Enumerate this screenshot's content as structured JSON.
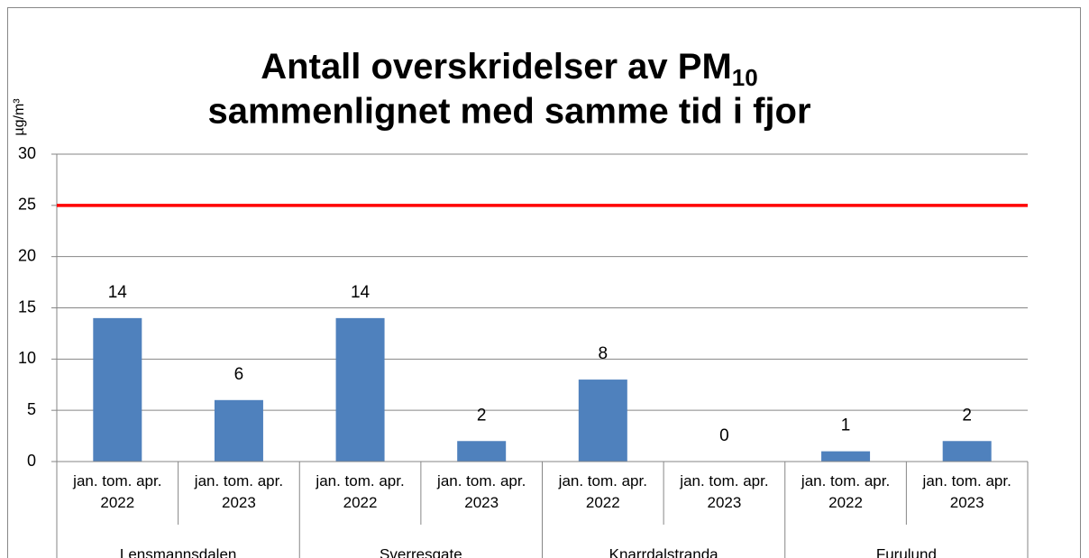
{
  "chart_data": {
    "type": "bar",
    "title": {
      "line1": "Antall overskridelser av PM",
      "subscript": "10",
      "line2": "sammenlignet med samme tid i fjor"
    },
    "y_axis_label": "µg/m³",
    "categories": [
      "jan. tom. apr. 2022",
      "jan. tom. apr. 2023",
      "jan. tom. apr. 2022",
      "jan. tom. apr. 2023",
      "jan. tom. apr. 2022",
      "jan. tom. apr. 2023",
      "jan. tom. apr. 2022",
      "jan. tom. apr. 2023"
    ],
    "groups": [
      {
        "name": "Lensmannsdalen",
        "span": 2
      },
      {
        "name": "Sverresgate",
        "span": 2
      },
      {
        "name": "Knarrdalstranda",
        "span": 2
      },
      {
        "name": "Furulund",
        "span": 2
      }
    ],
    "values": [
      14,
      6,
      14,
      2,
      8,
      0,
      1,
      2
    ],
    "color": "#4f81bd",
    "reference_line": {
      "value": 25,
      "color": "#ff0000"
    },
    "ylim": [
      0,
      30
    ],
    "yticks": [
      0,
      5,
      10,
      15,
      20,
      25,
      30
    ],
    "grid": true
  }
}
